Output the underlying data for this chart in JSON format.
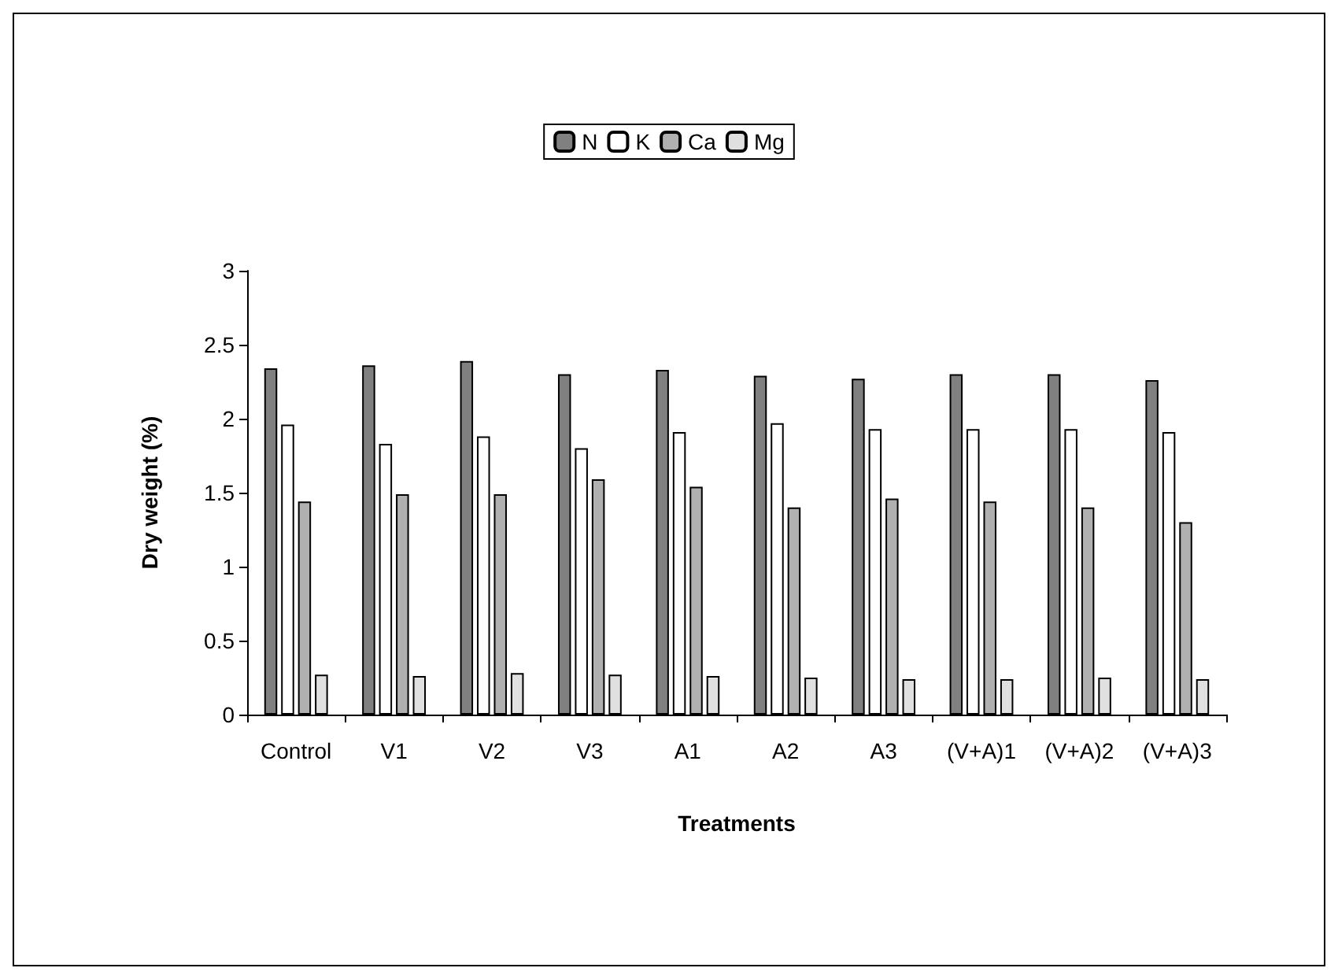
{
  "chart_data": {
    "type": "bar",
    "xlabel": "Treatments",
    "ylabel": "Dry weight (%)",
    "categories": [
      "Control",
      "V1",
      "V2",
      "V3",
      "A1",
      "A2",
      "A3",
      "(V+A)1",
      "(V+A)2",
      "(V+A)3"
    ],
    "series": [
      {
        "name": "N",
        "color": "#808080",
        "values": [
          2.34,
          2.36,
          2.39,
          2.3,
          2.33,
          2.29,
          2.27,
          2.3,
          2.3,
          2.26
        ]
      },
      {
        "name": "K",
        "color": "#ffffff",
        "values": [
          1.96,
          1.83,
          1.88,
          1.8,
          1.91,
          1.97,
          1.93,
          1.93,
          1.93,
          1.91
        ]
      },
      {
        "name": "Ca",
        "color": "#b0b0b0",
        "values": [
          1.44,
          1.49,
          1.49,
          1.59,
          1.54,
          1.4,
          1.46,
          1.44,
          1.4,
          1.3
        ]
      },
      {
        "name": "Mg",
        "color": "#e0e0e0",
        "values": [
          0.27,
          0.26,
          0.28,
          0.27,
          0.26,
          0.25,
          0.24,
          0.24,
          0.25,
          0.24
        ]
      }
    ],
    "ylim": [
      0,
      3
    ],
    "yticks": [
      0,
      0.5,
      1,
      1.5,
      2,
      2.5,
      3
    ],
    "grid": false,
    "legend": "top"
  }
}
